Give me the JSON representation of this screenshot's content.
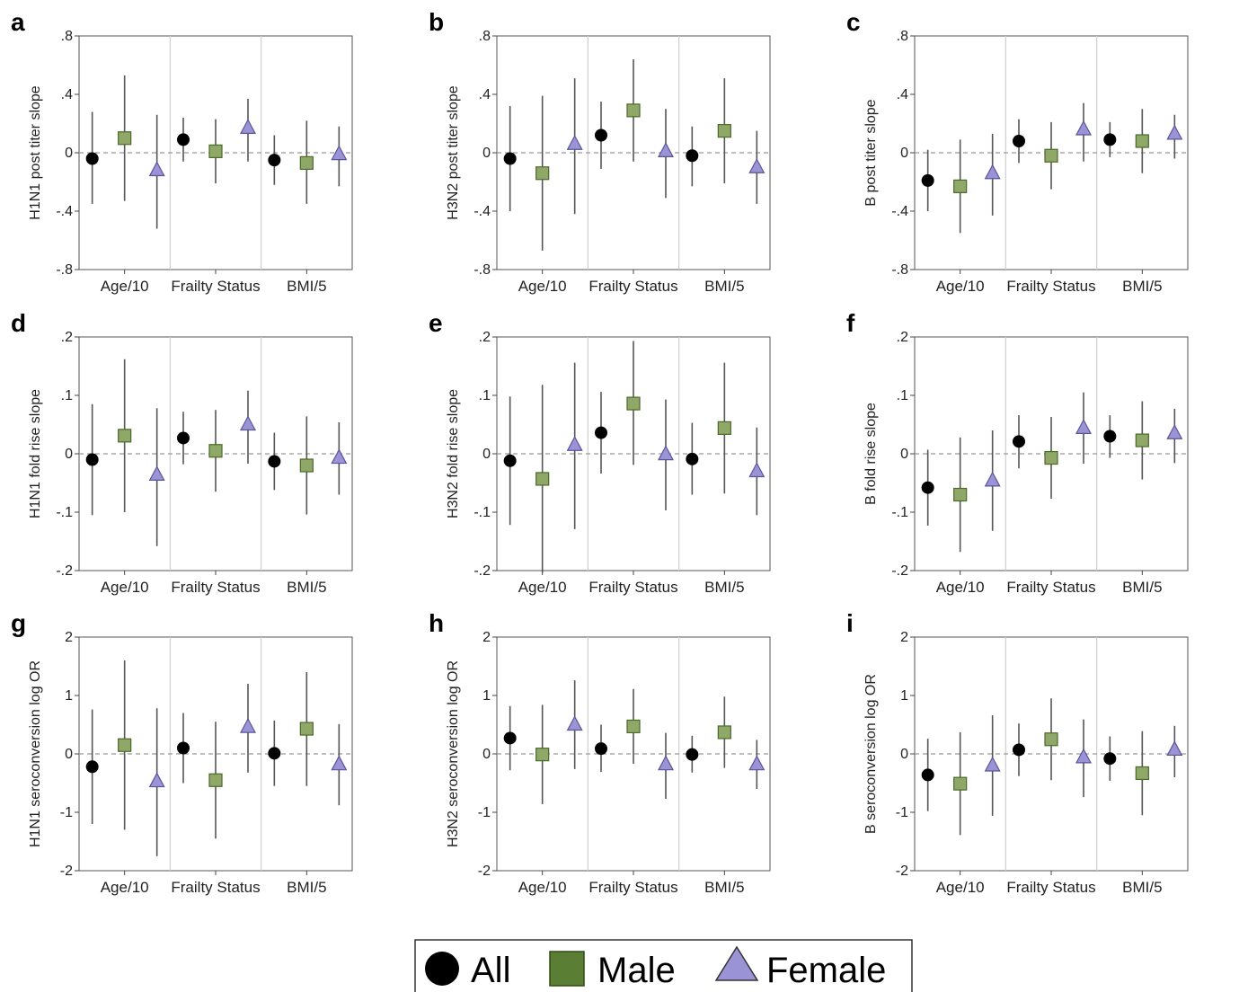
{
  "colors": {
    "all": "#000000",
    "male": "#8fa868",
    "male_edge": "#4a6a2a",
    "female": "#9a93d6",
    "female_edge": "#5a5499",
    "errorbar": "#555555",
    "zero_line": "#999999",
    "separator": "#cfcfcf"
  },
  "legend": {
    "all": "All",
    "male": "Male",
    "female": "Female"
  },
  "chart_data": [
    {
      "letter": "a",
      "type": "scatter",
      "ylabel": "H1N1 post titer slope",
      "ylim": [
        -0.8,
        0.8
      ],
      "yticks": [
        0.8,
        0.4,
        0,
        -0.4,
        -0.8
      ],
      "yticklabels": [
        ".8",
        ".4",
        "0",
        "-.4",
        "-.8"
      ],
      "categories": [
        "Age/10",
        "Frailty Status",
        "BMI/5"
      ],
      "series": [
        {
          "name": "All",
          "values": [
            -0.04,
            0.09,
            -0.05
          ],
          "lower": [
            -0.35,
            -0.06,
            -0.22
          ],
          "upper": [
            0.28,
            0.24,
            0.12
          ]
        },
        {
          "name": "Male",
          "values": [
            0.1,
            0.01,
            -0.07
          ],
          "lower": [
            -0.33,
            -0.21,
            -0.35
          ],
          "upper": [
            0.53,
            0.23,
            0.22
          ]
        },
        {
          "name": "Female",
          "values": [
            -0.12,
            0.17,
            -0.01
          ],
          "lower": [
            -0.52,
            -0.06,
            -0.23
          ],
          "upper": [
            0.26,
            0.37,
            0.18
          ]
        }
      ]
    },
    {
      "letter": "b",
      "type": "scatter",
      "ylabel": "H3N2 post titer slope",
      "ylim": [
        -0.8,
        0.8
      ],
      "yticks": [
        0.8,
        0.4,
        0,
        -0.4,
        -0.8
      ],
      "yticklabels": [
        ".8",
        ".4",
        "0",
        "-.4",
        "-.8"
      ],
      "categories": [
        "Age/10",
        "Frailty Status",
        "BMI/5"
      ],
      "series": [
        {
          "name": "All",
          "values": [
            -0.04,
            0.12,
            -0.02
          ],
          "lower": [
            -0.4,
            -0.11,
            -0.23
          ],
          "upper": [
            0.32,
            0.35,
            0.18
          ]
        },
        {
          "name": "Male",
          "values": [
            -0.14,
            0.29,
            0.15
          ],
          "lower": [
            -0.67,
            -0.06,
            -0.21
          ],
          "upper": [
            0.39,
            0.64,
            0.51
          ]
        },
        {
          "name": "Female",
          "values": [
            0.06,
            0.01,
            -0.1
          ],
          "lower": [
            -0.42,
            -0.31,
            -0.35
          ],
          "upper": [
            0.51,
            0.3,
            0.15
          ]
        }
      ]
    },
    {
      "letter": "c",
      "type": "scatter",
      "ylabel": "B post titer slope",
      "ylim": [
        -0.8,
        0.8
      ],
      "yticks": [
        0.8,
        0.4,
        0,
        -0.4,
        -0.8
      ],
      "yticklabels": [
        ".8",
        ".4",
        "0",
        "-.4",
        "-.8"
      ],
      "categories": [
        "Age/10",
        "Frailty Status",
        "BMI/5"
      ],
      "series": [
        {
          "name": "All",
          "values": [
            -0.19,
            0.08,
            0.09
          ],
          "lower": [
            -0.4,
            -0.07,
            -0.03
          ],
          "upper": [
            0.02,
            0.23,
            0.21
          ]
        },
        {
          "name": "Male",
          "values": [
            -0.23,
            -0.02,
            0.08
          ],
          "lower": [
            -0.55,
            -0.25,
            -0.14
          ],
          "upper": [
            0.09,
            0.21,
            0.3
          ]
        },
        {
          "name": "Female",
          "values": [
            -0.14,
            0.16,
            0.13
          ],
          "lower": [
            -0.43,
            -0.06,
            -0.04
          ],
          "upper": [
            0.13,
            0.34,
            0.26
          ]
        }
      ]
    },
    {
      "letter": "d",
      "type": "scatter",
      "ylabel": "H1N1 fold rise slope",
      "ylim": [
        -0.2,
        0.2
      ],
      "yticks": [
        0.2,
        0.1,
        0,
        -0.1,
        -0.2
      ],
      "yticklabels": [
        ".2",
        ".1",
        "0",
        "-.1",
        "-.2"
      ],
      "categories": [
        "Age/10",
        "Frailty Status",
        "BMI/5"
      ],
      "series": [
        {
          "name": "All",
          "values": [
            -0.01,
            0.027,
            -0.013
          ],
          "lower": [
            -0.105,
            -0.018,
            -0.062
          ],
          "upper": [
            0.085,
            0.072,
            0.036
          ]
        },
        {
          "name": "Male",
          "values": [
            0.031,
            0.005,
            -0.02
          ],
          "lower": [
            -0.1,
            -0.065,
            -0.104
          ],
          "upper": [
            0.162,
            0.075,
            0.064
          ]
        },
        {
          "name": "Female",
          "values": [
            -0.036,
            0.05,
            -0.007
          ],
          "lower": [
            -0.158,
            -0.017,
            -0.07
          ],
          "upper": [
            0.078,
            0.108,
            0.054
          ]
        }
      ]
    },
    {
      "letter": "e",
      "type": "scatter",
      "ylabel": "H3N2 fold rise slope",
      "ylim": [
        -0.2,
        0.2
      ],
      "yticks": [
        0.2,
        0.1,
        0,
        -0.1,
        -0.2
      ],
      "yticklabels": [
        ".2",
        ".1",
        "0",
        "-.1",
        "-.2"
      ],
      "categories": [
        "Age/10",
        "Frailty Status",
        "BMI/5"
      ],
      "series": [
        {
          "name": "All",
          "values": [
            -0.012,
            0.036,
            -0.009
          ],
          "lower": [
            -0.122,
            -0.034,
            -0.07
          ],
          "upper": [
            0.098,
            0.106,
            0.053
          ]
        },
        {
          "name": "Male",
          "values": [
            -0.043,
            0.086,
            0.044
          ],
          "lower": [
            -0.204,
            -0.019,
            -0.068
          ],
          "upper": [
            0.118,
            0.193,
            0.156
          ]
        },
        {
          "name": "Female",
          "values": [
            0.015,
            -0.001,
            -0.03
          ],
          "lower": [
            -0.129,
            -0.097,
            -0.105
          ],
          "upper": [
            0.156,
            0.093,
            0.045
          ]
        }
      ]
    },
    {
      "letter": "f",
      "type": "scatter",
      "ylabel": "B fold rise slope",
      "ylim": [
        -0.2,
        0.2
      ],
      "yticks": [
        0.2,
        0.1,
        0,
        -0.1,
        -0.2
      ],
      "yticklabels": [
        ".2",
        ".1",
        "0",
        "-.1",
        "-.2"
      ],
      "categories": [
        "Age/10",
        "Frailty Status",
        "BMI/5"
      ],
      "series": [
        {
          "name": "All",
          "values": [
            -0.058,
            0.021,
            0.03
          ],
          "lower": [
            -0.123,
            -0.025,
            -0.007
          ],
          "upper": [
            0.007,
            0.066,
            0.066
          ]
        },
        {
          "name": "Male",
          "values": [
            -0.07,
            -0.007,
            0.023
          ],
          "lower": [
            -0.168,
            -0.077,
            -0.044
          ],
          "upper": [
            0.028,
            0.063,
            0.09
          ]
        },
        {
          "name": "Female",
          "values": [
            -0.046,
            0.044,
            0.035
          ],
          "lower": [
            -0.132,
            -0.017,
            -0.016
          ],
          "upper": [
            0.04,
            0.105,
            0.077
          ]
        }
      ]
    },
    {
      "letter": "g",
      "type": "scatter",
      "ylabel": "H1N1 seroconversion log OR",
      "ylim": [
        -2,
        2
      ],
      "yticks": [
        2,
        1,
        0,
        -1,
        -2
      ],
      "yticklabels": [
        "2",
        "1",
        "0",
        "-1",
        "-2"
      ],
      "categories": [
        "Age/10",
        "Frailty Status",
        "BMI/5"
      ],
      "series": [
        {
          "name": "All",
          "values": [
            -0.22,
            0.1,
            0.01
          ],
          "lower": [
            -1.2,
            -0.5,
            -0.55
          ],
          "upper": [
            0.76,
            0.7,
            0.57
          ]
        },
        {
          "name": "Male",
          "values": [
            0.15,
            -0.45,
            0.43
          ],
          "lower": [
            -1.3,
            -1.45,
            -0.55
          ],
          "upper": [
            1.6,
            0.55,
            1.4
          ]
        },
        {
          "name": "Female",
          "values": [
            -0.47,
            0.46,
            -0.18
          ],
          "lower": [
            -1.75,
            -0.32,
            -0.88
          ],
          "upper": [
            0.78,
            1.2,
            0.51
          ]
        }
      ]
    },
    {
      "letter": "h",
      "type": "scatter",
      "ylabel": "H3N2 seroconversion log OR",
      "ylim": [
        -2,
        2
      ],
      "yticks": [
        2,
        1,
        0,
        -1,
        -2
      ],
      "yticklabels": [
        "2",
        "1",
        "0",
        "-1",
        "-2"
      ],
      "categories": [
        "Age/10",
        "Frailty Status",
        "BMI/5"
      ],
      "series": [
        {
          "name": "All",
          "values": [
            0.27,
            0.09,
            -0.01
          ],
          "lower": [
            -0.28,
            -0.31,
            -0.32
          ],
          "upper": [
            0.82,
            0.5,
            0.31
          ]
        },
        {
          "name": "Male",
          "values": [
            -0.01,
            0.47,
            0.37
          ],
          "lower": [
            -0.86,
            -0.17,
            -0.24
          ],
          "upper": [
            0.84,
            1.11,
            0.98
          ]
        },
        {
          "name": "Female",
          "values": [
            0.5,
            -0.18,
            -0.18
          ],
          "lower": [
            -0.26,
            -0.77,
            -0.6
          ],
          "upper": [
            1.26,
            0.36,
            0.24
          ]
        }
      ]
    },
    {
      "letter": "i",
      "type": "scatter",
      "ylabel": "B seroconversion log OR",
      "ylim": [
        -2,
        2
      ],
      "yticks": [
        2,
        1,
        0,
        -1,
        -2
      ],
      "yticklabels": [
        "2",
        "1",
        "0",
        "-1",
        "-2"
      ],
      "categories": [
        "Age/10",
        "Frailty Status",
        "BMI/5"
      ],
      "series": [
        {
          "name": "All",
          "values": [
            -0.36,
            0.07,
            -0.08
          ],
          "lower": [
            -0.98,
            -0.38,
            -0.46
          ],
          "upper": [
            0.26,
            0.52,
            0.3
          ]
        },
        {
          "name": "Male",
          "values": [
            -0.51,
            0.25,
            -0.33
          ],
          "lower": [
            -1.39,
            -0.45,
            -1.05
          ],
          "upper": [
            0.37,
            0.95,
            0.39
          ]
        },
        {
          "name": "Female",
          "values": [
            -0.2,
            -0.06,
            0.07
          ],
          "lower": [
            -1.06,
            -0.74,
            -0.4
          ],
          "upper": [
            0.66,
            0.59,
            0.48
          ]
        }
      ]
    }
  ]
}
